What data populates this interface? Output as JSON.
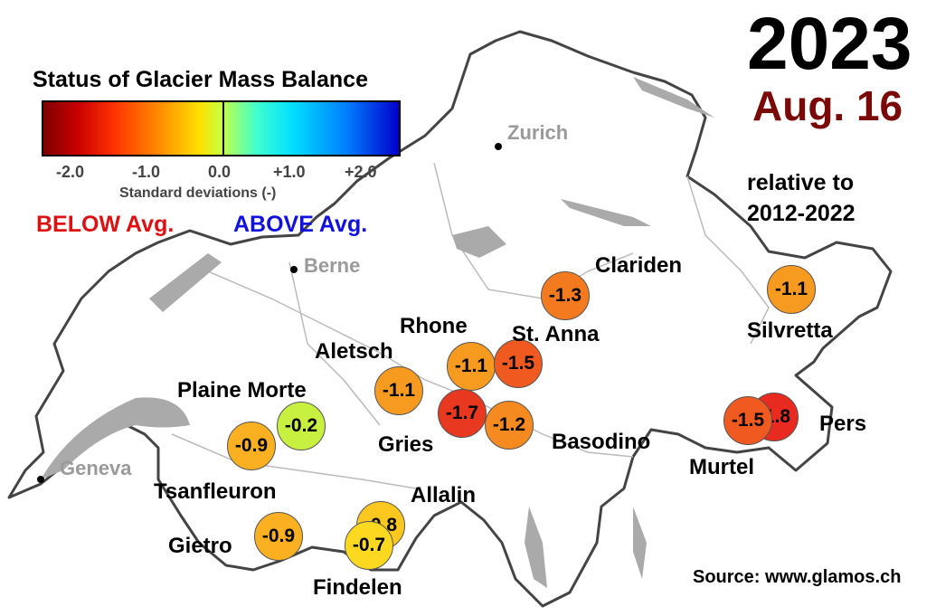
{
  "header": {
    "year": "2023",
    "date": "Aug. 16",
    "relative_line1": "relative to",
    "relative_line2": "2012-2022"
  },
  "legend": {
    "title": "Status of Glacier Mass Balance",
    "ticks": [
      "-2.0",
      "-1.0",
      "0.0",
      "+1.0",
      "+2.0"
    ],
    "axis_label": "Standard deviations (-)",
    "below_label": "BELOW Avg.",
    "above_label": "ABOVE Avg.",
    "colors": [
      "#7f0000",
      "#ff3300",
      "#ffe000",
      "#40ffd0",
      "#0000cc"
    ]
  },
  "cities": [
    "Zurich",
    "Berne",
    "Geneva"
  ],
  "glaciers": [
    {
      "name": "Clariden",
      "value": "-1.3",
      "color": "#f47a20"
    },
    {
      "name": "Silvretta",
      "value": "-1.1",
      "color": "#f79a20"
    },
    {
      "name": "Rhone",
      "value": "-1.1",
      "color": "#f79a20"
    },
    {
      "name": "St. Anna",
      "value": "-1.5",
      "color": "#f05a20"
    },
    {
      "name": "Aletsch",
      "value": "-1.1",
      "color": "#f79a20"
    },
    {
      "name": "Plaine Morte",
      "value": "-0.2",
      "color": "#c8f040"
    },
    {
      "name": "Gries",
      "value": "-1.7",
      "color": "#e83820"
    },
    {
      "name": "Basodino",
      "value": "-1.2",
      "color": "#f58a20"
    },
    {
      "name": "Pers",
      "value": "-1.8",
      "color": "#e82a20"
    },
    {
      "name": "Murtel",
      "value": "-1.5",
      "color": "#f05a20"
    },
    {
      "name": "Tsanfleuron",
      "value": "-0.9",
      "color": "#fab020"
    },
    {
      "name": "Allalin",
      "value": "-0.8",
      "color": "#fcc820"
    },
    {
      "name": "Gietro",
      "value": "-0.9",
      "color": "#fab020"
    },
    {
      "name": "Findelen",
      "value": "-0.7",
      "color": "#fcd820"
    }
  ],
  "source": "Source: www.glamos.ch"
}
